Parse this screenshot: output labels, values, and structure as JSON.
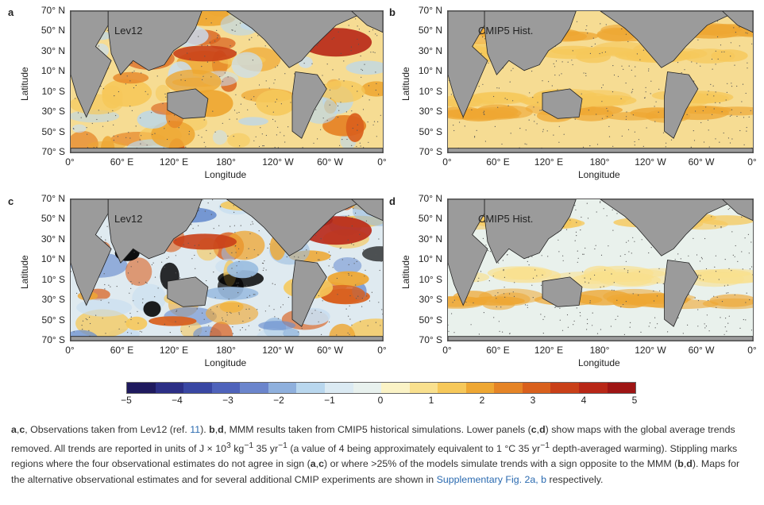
{
  "panels": [
    {
      "letter": "a",
      "label": "Lev12"
    },
    {
      "letter": "b",
      "label": "CMIP5 Hist."
    },
    {
      "letter": "c",
      "label": "Lev12"
    },
    {
      "letter": "d",
      "label": "CMIP5 Hist."
    }
  ],
  "axes": {
    "latitude_title": "Latitude",
    "longitude_title": "Longitude",
    "lat_ticks": [
      "70° N",
      "50° N",
      "30° N",
      "10° N",
      "10° S",
      "30° S",
      "50° S",
      "70° S"
    ],
    "lon_ticks": [
      "0°",
      "60° E",
      "120° E",
      "180°",
      "120° W",
      "60° W",
      "0°"
    ]
  },
  "colorbar": {
    "ticks": [
      "−5",
      "−4",
      "−3",
      "−2",
      "−1",
      "0",
      "1",
      "2",
      "3",
      "4",
      "5"
    ],
    "colors": [
      "#1f1a5e",
      "#2c2f86",
      "#3947a3",
      "#4f63bb",
      "#6b85cc",
      "#8fb0dd",
      "#b9d7ee",
      "#dbeaf3",
      "#e8f1ee",
      "#fbf3c6",
      "#f9e08e",
      "#f6c85a",
      "#eea733",
      "#e58426",
      "#d9601d",
      "#c94018",
      "#b82717",
      "#9e1514"
    ]
  },
  "caption": {
    "p1_a": "a",
    "p1_c": "c",
    "p1_text1": ", Observations taken from Lev12 (ref. ",
    "p1_ref": "11",
    "p1_text2": "). ",
    "p1_b": "b",
    "p1_d": "d",
    "p1_text3": ", MMM results taken from CMIP5 historical simulations. Lower panels (",
    "p1_c2": "c",
    "p1_d2": "d",
    "p1_text4": ") show maps with the global average trends removed. All trends are reported in units of J × 10",
    "sup3": "3",
    "p1_text5": " kg",
    "sup_m1": "−1",
    "p1_text6": " 35 yr",
    "sup_m1b": "−1",
    "p1_text7": " (a value of 4 being approximately equivalent to 1 °C 35 yr",
    "sup_m1c": "−1",
    "p1_text8": " depth-averaged warming). Stippling marks regions where the four observational estimates do not agree in sign (",
    "p1_a2": "a",
    "p1_c3": "c",
    "p1_text9": ") or where >25% of the models simulate trends with a sign opposite to the MMM (",
    "p1_b2": "b",
    "p1_d3": "d",
    "p1_text10": "). Maps for the alternative observational estimates and for several additional CMIP experiments are shown in ",
    "p1_link": "Supplementary Fig. 2a, b",
    "p1_text11": " respectively."
  }
}
